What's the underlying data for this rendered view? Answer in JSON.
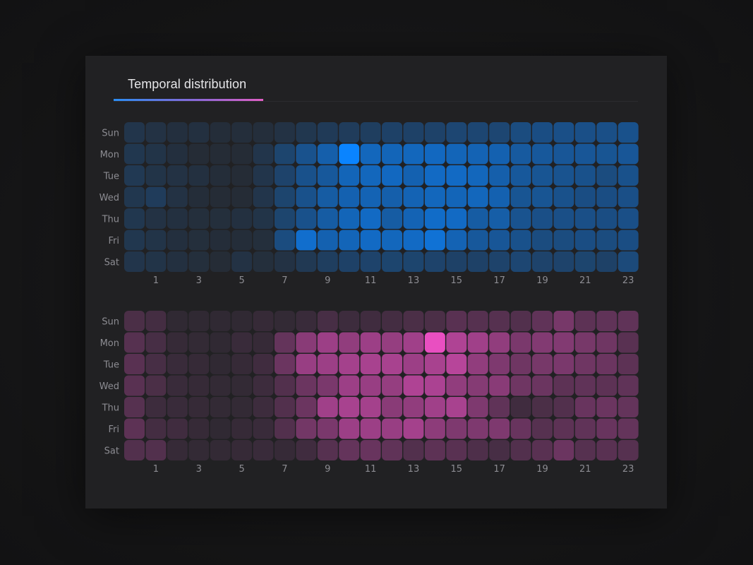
{
  "title": "Temporal distribution",
  "colors": {
    "base": "#26272b",
    "blue": "#0a84ff",
    "pink": "#e94fc1",
    "underline": [
      "#2b8df2",
      "#e05fc4"
    ]
  },
  "chart_data": [
    {
      "type": "heatmap",
      "title": "",
      "xlabel": "",
      "ylabel": "",
      "rows": [
        "Sun",
        "Mon",
        "Tue",
        "Wed",
        "Thu",
        "Fri",
        "Sat"
      ],
      "columns": [
        0,
        1,
        2,
        3,
        4,
        5,
        6,
        7,
        8,
        9,
        10,
        11,
        12,
        13,
        14,
        15,
        16,
        17,
        18,
        19,
        20,
        21,
        22,
        23
      ],
      "x_tick_labels": [
        "1",
        "3",
        "5",
        "7",
        "9",
        "11",
        "13",
        "15",
        "17",
        "19",
        "21",
        "23"
      ],
      "value_range": [
        0,
        1
      ],
      "color": "#0a84ff",
      "values": [
        [
          0.12,
          0.08,
          0.05,
          0.06,
          0.02,
          0.03,
          0.03,
          0.08,
          0.14,
          0.18,
          0.2,
          0.22,
          0.26,
          0.26,
          0.27,
          0.32,
          0.32,
          0.32,
          0.38,
          0.4,
          0.42,
          0.42,
          0.42,
          0.44
        ],
        [
          0.14,
          0.1,
          0.05,
          0.0,
          0.0,
          0.0,
          0.12,
          0.3,
          0.45,
          0.6,
          1.0,
          0.68,
          0.66,
          0.68,
          0.7,
          0.66,
          0.64,
          0.62,
          0.54,
          0.52,
          0.5,
          0.5,
          0.48,
          0.5
        ],
        [
          0.16,
          0.1,
          0.08,
          0.06,
          0.02,
          0.0,
          0.12,
          0.28,
          0.44,
          0.52,
          0.66,
          0.68,
          0.7,
          0.62,
          0.72,
          0.72,
          0.68,
          0.6,
          0.52,
          0.48,
          0.46,
          0.44,
          0.38,
          0.44
        ],
        [
          0.14,
          0.2,
          0.08,
          0.02,
          0.0,
          0.0,
          0.12,
          0.3,
          0.44,
          0.56,
          0.62,
          0.64,
          0.6,
          0.64,
          0.68,
          0.66,
          0.68,
          0.62,
          0.48,
          0.48,
          0.44,
          0.4,
          0.4,
          0.42
        ],
        [
          0.14,
          0.08,
          0.06,
          0.04,
          0.04,
          0.06,
          0.1,
          0.3,
          0.44,
          0.56,
          0.66,
          0.72,
          0.56,
          0.64,
          0.74,
          0.72,
          0.56,
          0.58,
          0.46,
          0.42,
          0.42,
          0.42,
          0.4,
          0.42
        ],
        [
          0.14,
          0.1,
          0.05,
          0.04,
          0.02,
          0.02,
          0.04,
          0.38,
          0.76,
          0.62,
          0.66,
          0.72,
          0.68,
          0.72,
          0.8,
          0.64,
          0.52,
          0.5,
          0.44,
          0.38,
          0.38,
          0.4,
          0.38,
          0.4
        ],
        [
          0.12,
          0.1,
          0.06,
          0.04,
          0.0,
          0.08,
          0.04,
          0.08,
          0.16,
          0.22,
          0.26,
          0.28,
          0.3,
          0.3,
          0.28,
          0.26,
          0.26,
          0.28,
          0.32,
          0.28,
          0.28,
          0.3,
          0.26,
          0.36
        ]
      ]
    },
    {
      "type": "heatmap",
      "title": "",
      "xlabel": "",
      "ylabel": "",
      "rows": [
        "Sun",
        "Mon",
        "Tue",
        "Wed",
        "Thu",
        "Fri",
        "Sat"
      ],
      "columns": [
        0,
        1,
        2,
        3,
        4,
        5,
        6,
        7,
        8,
        9,
        10,
        11,
        12,
        13,
        14,
        15,
        16,
        17,
        18,
        19,
        20,
        21,
        22,
        23
      ],
      "x_tick_labels": [
        "1",
        "3",
        "5",
        "7",
        "9",
        "11",
        "13",
        "15",
        "17",
        "19",
        "21",
        "23"
      ],
      "value_range": [
        0,
        1
      ],
      "color": "#e94fc1",
      "values": [
        [
          0.16,
          0.12,
          0.0,
          0.0,
          0.0,
          0.0,
          0.04,
          0.02,
          0.06,
          0.14,
          0.08,
          0.1,
          0.12,
          0.16,
          0.16,
          0.24,
          0.22,
          0.22,
          0.2,
          0.28,
          0.4,
          0.26,
          0.28,
          0.28
        ],
        [
          0.22,
          0.14,
          0.04,
          0.02,
          0.0,
          0.06,
          0.04,
          0.3,
          0.5,
          0.6,
          0.54,
          0.6,
          0.56,
          0.62,
          1.0,
          0.7,
          0.62,
          0.54,
          0.42,
          0.46,
          0.46,
          0.4,
          0.36,
          0.24
        ],
        [
          0.24,
          0.14,
          0.06,
          0.04,
          0.0,
          0.04,
          0.1,
          0.34,
          0.58,
          0.6,
          0.64,
          0.66,
          0.66,
          0.6,
          0.66,
          0.74,
          0.54,
          0.44,
          0.36,
          0.4,
          0.42,
          0.36,
          0.34,
          0.26
        ],
        [
          0.24,
          0.16,
          0.06,
          0.04,
          0.02,
          0.02,
          0.08,
          0.2,
          0.34,
          0.42,
          0.6,
          0.58,
          0.56,
          0.7,
          0.68,
          0.54,
          0.48,
          0.5,
          0.36,
          0.34,
          0.26,
          0.28,
          0.26,
          0.28
        ],
        [
          0.22,
          0.08,
          0.06,
          0.04,
          0.02,
          0.02,
          0.08,
          0.2,
          0.34,
          0.62,
          0.66,
          0.64,
          0.5,
          0.54,
          0.62,
          0.66,
          0.44,
          0.28,
          0.1,
          0.16,
          0.2,
          0.32,
          0.34,
          0.3
        ],
        [
          0.26,
          0.12,
          0.1,
          0.04,
          0.0,
          0.04,
          0.06,
          0.2,
          0.38,
          0.42,
          0.6,
          0.6,
          0.58,
          0.64,
          0.52,
          0.44,
          0.44,
          0.44,
          0.32,
          0.22,
          0.26,
          0.28,
          0.32,
          0.3
        ],
        [
          0.2,
          0.2,
          0.04,
          0.02,
          0.02,
          0.04,
          0.06,
          0.04,
          0.1,
          0.22,
          0.3,
          0.32,
          0.28,
          0.2,
          0.26,
          0.24,
          0.18,
          0.14,
          0.2,
          0.24,
          0.34,
          0.22,
          0.24,
          0.22
        ]
      ]
    }
  ]
}
